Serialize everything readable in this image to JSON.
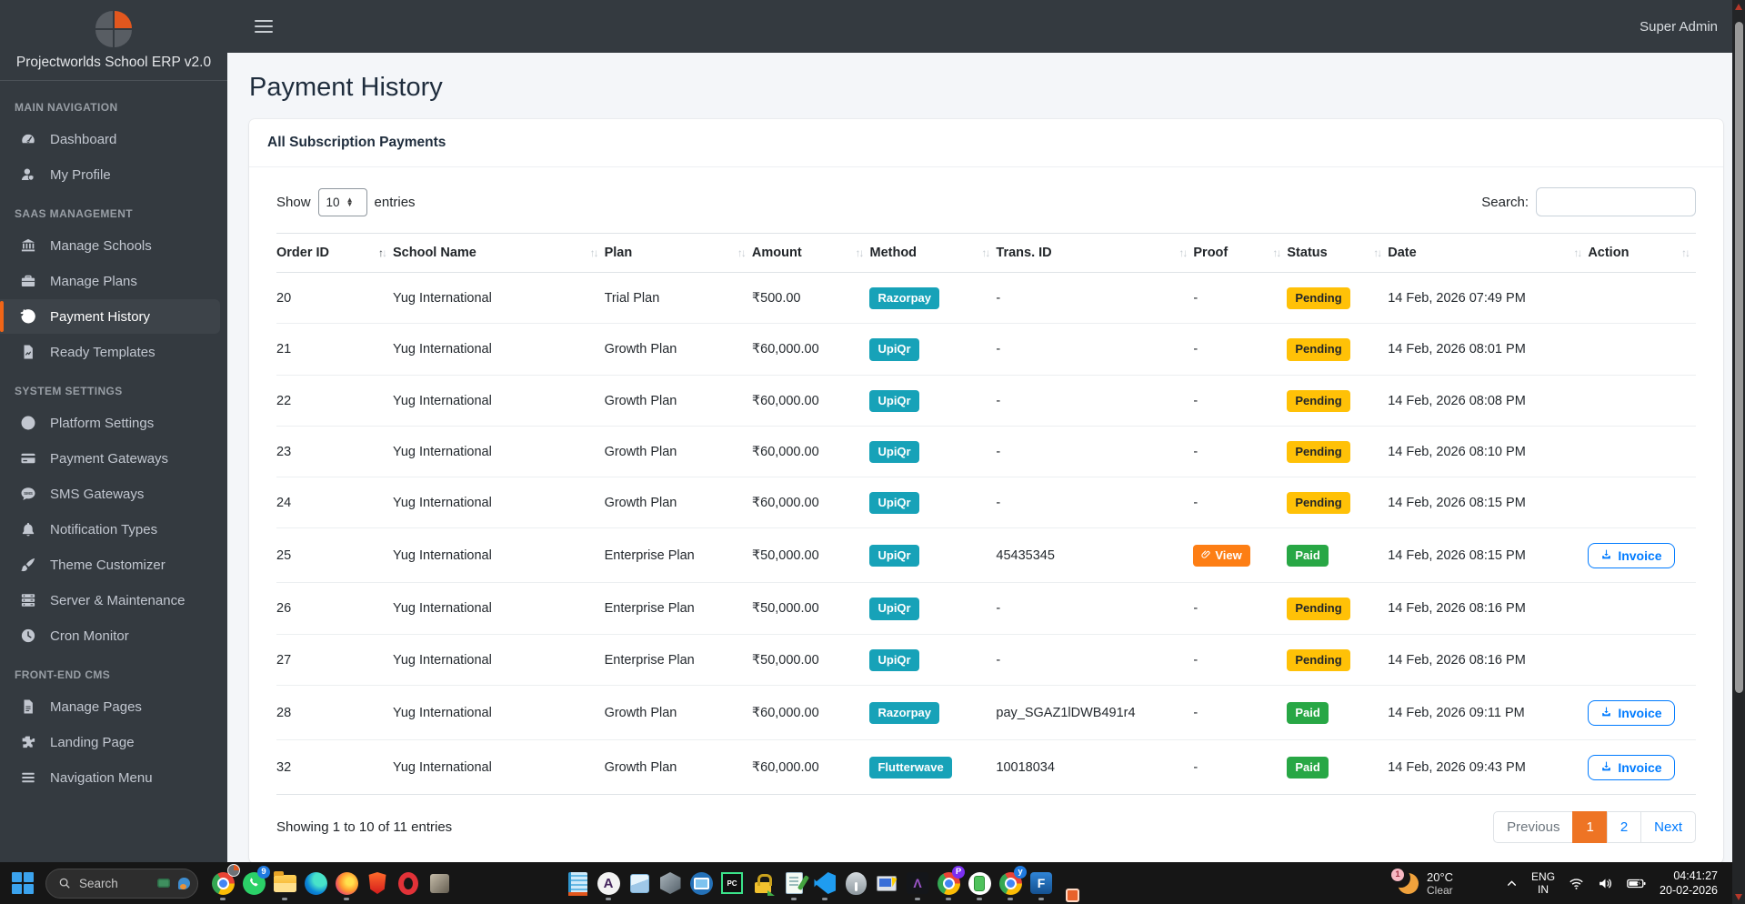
{
  "sidebar": {
    "brand": "Projectworlds School ERP v2.0",
    "sections": [
      {
        "label": "MAIN NAVIGATION",
        "items": [
          {
            "label": "Dashboard",
            "icon": "gauge"
          },
          {
            "label": "My Profile",
            "icon": "user"
          }
        ]
      },
      {
        "label": "SAAS MANAGEMENT",
        "items": [
          {
            "label": "Manage Schools",
            "icon": "bank"
          },
          {
            "label": "Manage Plans",
            "icon": "briefcase"
          },
          {
            "label": "Payment History",
            "icon": "history",
            "active": true
          },
          {
            "label": "Ready Templates",
            "icon": "file-chart"
          }
        ]
      },
      {
        "label": "SYSTEM SETTINGS",
        "items": [
          {
            "label": "Platform Settings",
            "icon": "globe"
          },
          {
            "label": "Payment Gateways",
            "icon": "credit-card"
          },
          {
            "label": "SMS Gateways",
            "icon": "sms"
          },
          {
            "label": "Notification Types",
            "icon": "bell"
          },
          {
            "label": "Theme Customizer",
            "icon": "brush"
          },
          {
            "label": "Server & Maintenance",
            "icon": "server"
          },
          {
            "label": "Cron Monitor",
            "icon": "clock"
          }
        ]
      },
      {
        "label": "FRONT-END CMS",
        "items": [
          {
            "label": "Manage Pages",
            "icon": "file"
          },
          {
            "label": "Landing Page",
            "icon": "puzzle"
          },
          {
            "label": "Navigation Menu",
            "icon": "bars"
          }
        ]
      }
    ]
  },
  "topbar": {
    "user": "Super Admin"
  },
  "page": {
    "title": "Payment History"
  },
  "card": {
    "title": "All Subscription Payments",
    "show_label": "Show",
    "page_length": "10",
    "entries_label": "entries",
    "search_label": "Search:",
    "search_value": "",
    "showing": "Showing 1 to 10 of 11 entries"
  },
  "table": {
    "columns": [
      "Order ID",
      "School Name",
      "Plan",
      "Amount",
      "Method",
      "Trans. ID",
      "Proof",
      "Status",
      "Date",
      "Action"
    ],
    "sorted_column_index": 0,
    "sort_direction": "asc",
    "proof_view_label": "View",
    "invoice_label": "Invoice",
    "rows": [
      {
        "order_id": "20",
        "school": "Yug International",
        "plan": "Trial Plan",
        "amount": "₹500.00",
        "method": "Razorpay",
        "trans_id": "-",
        "proof": "-",
        "status": "Pending",
        "date": "14 Feb, 2026 07:49 PM",
        "action": ""
      },
      {
        "order_id": "21",
        "school": "Yug International",
        "plan": "Growth Plan",
        "amount": "₹60,000.00",
        "method": "UpiQr",
        "trans_id": "-",
        "proof": "-",
        "status": "Pending",
        "date": "14 Feb, 2026 08:01 PM",
        "action": ""
      },
      {
        "order_id": "22",
        "school": "Yug International",
        "plan": "Growth Plan",
        "amount": "₹60,000.00",
        "method": "UpiQr",
        "trans_id": "-",
        "proof": "-",
        "status": "Pending",
        "date": "14 Feb, 2026 08:08 PM",
        "action": ""
      },
      {
        "order_id": "23",
        "school": "Yug International",
        "plan": "Growth Plan",
        "amount": "₹60,000.00",
        "method": "UpiQr",
        "trans_id": "-",
        "proof": "-",
        "status": "Pending",
        "date": "14 Feb, 2026 08:10 PM",
        "action": ""
      },
      {
        "order_id": "24",
        "school": "Yug International",
        "plan": "Growth Plan",
        "amount": "₹60,000.00",
        "method": "UpiQr",
        "trans_id": "-",
        "proof": "-",
        "status": "Pending",
        "date": "14 Feb, 2026 08:15 PM",
        "action": ""
      },
      {
        "order_id": "25",
        "school": "Yug International",
        "plan": "Enterprise Plan",
        "amount": "₹50,000.00",
        "method": "UpiQr",
        "trans_id": "45435345",
        "proof": "View",
        "status": "Paid",
        "date": "14 Feb, 2026 08:15 PM",
        "action": "Invoice"
      },
      {
        "order_id": "26",
        "school": "Yug International",
        "plan": "Enterprise Plan",
        "amount": "₹50,000.00",
        "method": "UpiQr",
        "trans_id": "-",
        "proof": "-",
        "status": "Pending",
        "date": "14 Feb, 2026 08:16 PM",
        "action": ""
      },
      {
        "order_id": "27",
        "school": "Yug International",
        "plan": "Enterprise Plan",
        "amount": "₹50,000.00",
        "method": "UpiQr",
        "trans_id": "-",
        "proof": "-",
        "status": "Pending",
        "date": "14 Feb, 2026 08:16 PM",
        "action": ""
      },
      {
        "order_id": "28",
        "school": "Yug International",
        "plan": "Growth Plan",
        "amount": "₹60,000.00",
        "method": "Razorpay",
        "trans_id": "pay_SGAZ1lDWB491r4",
        "proof": "-",
        "status": "Paid",
        "date": "14 Feb, 2026 09:11 PM",
        "action": "Invoice"
      },
      {
        "order_id": "32",
        "school": "Yug International",
        "plan": "Growth Plan",
        "amount": "₹60,000.00",
        "method": "Flutterwave",
        "trans_id": "10018034",
        "proof": "-",
        "status": "Paid",
        "date": "14 Feb, 2026 09:43 PM",
        "action": "Invoice"
      }
    ]
  },
  "pagination": {
    "previous": "Previous",
    "pages": [
      "1",
      "2"
    ],
    "active_page": "1",
    "next": "Next"
  },
  "colors": {
    "accent_orange": "#ee7424",
    "method_badge_teal": "#17a2b8",
    "paid_badge_green": "#28a745",
    "pending_badge_yellow": "#ffc107",
    "view_badge_orange": "#fd7e14",
    "link_blue": "#007bff",
    "sidebar_bg": "#343a40",
    "content_bg": "#f4f6f9"
  },
  "taskbar": {
    "search_placeholder": "Search",
    "icons": [
      {
        "name": "chrome-erp",
        "running": true
      },
      {
        "name": "whatsapp",
        "badge": "9"
      },
      {
        "name": "file-explorer",
        "running": true
      },
      {
        "name": "edge"
      },
      {
        "name": "firefox",
        "running": true
      },
      {
        "name": "brave"
      },
      {
        "name": "opera"
      },
      {
        "name": "faded-app"
      },
      {
        "name": "notepad-plus-plus"
      },
      {
        "name": "appium",
        "running": true
      },
      {
        "name": "virtualbox"
      },
      {
        "name": "netbeans"
      },
      {
        "name": "anydesk"
      },
      {
        "name": "pycharm"
      },
      {
        "name": "winscp"
      },
      {
        "name": "text-editor",
        "running": true
      },
      {
        "name": "vscode",
        "running": true
      },
      {
        "name": "postgresql"
      },
      {
        "name": "putty"
      },
      {
        "name": "nmap",
        "running": true
      },
      {
        "name": "chrome-profile-p",
        "badge": "P",
        "running": true
      },
      {
        "name": "phone-link",
        "running": true
      },
      {
        "name": "chrome-profile-y",
        "badge": "y",
        "running": true
      },
      {
        "name": "filezilla",
        "running": true
      },
      {
        "name": "snipping-tool"
      }
    ],
    "weather": {
      "badge": "1",
      "temp": "20°C",
      "condition": "Clear"
    },
    "tray": {
      "language": "ENG",
      "region": "IN",
      "time": "04:41:27",
      "date": "20-02-2026"
    }
  }
}
